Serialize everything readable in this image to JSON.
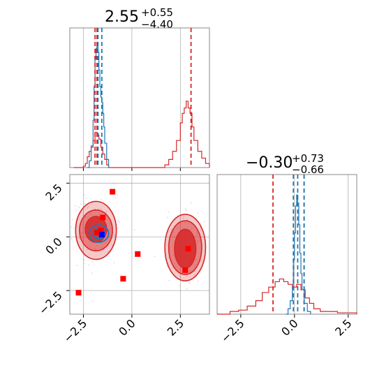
{
  "chart_data": {
    "type": "corner",
    "colors": {
      "prior": "#d62728",
      "posterior": "#1f77b4",
      "marker": "#ff0000",
      "truth": "#0000ff",
      "scatter": "#e6a9d8",
      "grid": "#b0b0b0",
      "frame": "#888888"
    },
    "params": [
      {
        "title_value": "2.55",
        "title_plus": "+0.55",
        "title_minus": "−4.40",
        "range": [
          -3.2,
          4.0
        ]
      },
      {
        "title_value": "−0.30",
        "title_plus": "+0.73",
        "title_minus": "−0.66",
        "range": [
          -3.6,
          2.9
        ]
      }
    ],
    "axis_ticks": [
      {
        "value": -2.5,
        "label": "−2.5"
      },
      {
        "value": 0.0,
        "label": "0.0"
      },
      {
        "value": 2.5,
        "label": "2.5"
      }
    ],
    "hist1_d": {
      "quantile_lines_red": [
        -1.9,
        -1.8,
        3.05
      ],
      "quantile_lines_blue": [
        -1.75,
        -1.55
      ],
      "red_hist": [
        {
          "x": -3.0,
          "y": 0.0
        },
        {
          "x": -2.5,
          "y": 0.01
        },
        {
          "x": -2.4,
          "y": 0.03
        },
        {
          "x": -2.3,
          "y": 0.08
        },
        {
          "x": -2.2,
          "y": 0.12
        },
        {
          "x": -2.1,
          "y": 0.16
        },
        {
          "x": -2.0,
          "y": 0.2
        },
        {
          "x": -1.9,
          "y": 0.26
        },
        {
          "x": -1.8,
          "y": 0.24
        },
        {
          "x": -1.7,
          "y": 0.21
        },
        {
          "x": -1.6,
          "y": 0.15
        },
        {
          "x": -1.5,
          "y": 0.1
        },
        {
          "x": -1.4,
          "y": 0.06
        },
        {
          "x": -1.3,
          "y": 0.02
        },
        {
          "x": -1.2,
          "y": 0.0
        },
        {
          "x": 1.5,
          "y": 0.0
        },
        {
          "x": 1.7,
          "y": 0.02
        },
        {
          "x": 1.9,
          "y": 0.06
        },
        {
          "x": 2.1,
          "y": 0.12
        },
        {
          "x": 2.3,
          "y": 0.2
        },
        {
          "x": 2.5,
          "y": 0.33
        },
        {
          "x": 2.6,
          "y": 0.4
        },
        {
          "x": 2.7,
          "y": 0.44
        },
        {
          "x": 2.8,
          "y": 0.49
        },
        {
          "x": 2.9,
          "y": 0.44
        },
        {
          "x": 3.0,
          "y": 0.4
        },
        {
          "x": 3.1,
          "y": 0.3
        },
        {
          "x": 3.2,
          "y": 0.2
        },
        {
          "x": 3.4,
          "y": 0.12
        },
        {
          "x": 3.6,
          "y": 0.07
        },
        {
          "x": 3.8,
          "y": 0.03
        },
        {
          "x": 4.0,
          "y": 0.0
        }
      ],
      "blue_hist": [
        {
          "x": -2.3,
          "y": 0.0
        },
        {
          "x": -2.2,
          "y": 0.05
        },
        {
          "x": -2.1,
          "y": 0.15
        },
        {
          "x": -2.0,
          "y": 0.35
        },
        {
          "x": -1.95,
          "y": 0.6
        },
        {
          "x": -1.9,
          "y": 0.8
        },
        {
          "x": -1.85,
          "y": 0.88
        },
        {
          "x": -1.8,
          "y": 0.9
        },
        {
          "x": -1.75,
          "y": 0.85
        },
        {
          "x": -1.7,
          "y": 0.72
        },
        {
          "x": -1.65,
          "y": 0.6
        },
        {
          "x": -1.6,
          "y": 0.52
        },
        {
          "x": -1.55,
          "y": 0.48
        },
        {
          "x": -1.5,
          "y": 0.4
        },
        {
          "x": -1.45,
          "y": 0.3
        },
        {
          "x": -1.4,
          "y": 0.18
        },
        {
          "x": -1.3,
          "y": 0.06
        },
        {
          "x": -1.2,
          "y": 0.0
        }
      ],
      "ymax": 1.0
    },
    "hist2_d": {
      "quantile_lines_red": [
        -1.0,
        0.45
      ],
      "quantile_lines_blue": [
        -0.05,
        0.15,
        0.45
      ],
      "red_hist": [
        {
          "x": -3.6,
          "y": 0.0
        },
        {
          "x": -3.0,
          "y": 0.02
        },
        {
          "x": -2.6,
          "y": 0.03
        },
        {
          "x": -2.2,
          "y": 0.06
        },
        {
          "x": -1.8,
          "y": 0.1
        },
        {
          "x": -1.5,
          "y": 0.16
        },
        {
          "x": -1.2,
          "y": 0.2
        },
        {
          "x": -0.9,
          "y": 0.24
        },
        {
          "x": -0.7,
          "y": 0.26
        },
        {
          "x": -0.5,
          "y": 0.24
        },
        {
          "x": -0.3,
          "y": 0.22
        },
        {
          "x": -0.1,
          "y": 0.2
        },
        {
          "x": 0.1,
          "y": 0.22
        },
        {
          "x": 0.3,
          "y": 0.18
        },
        {
          "x": 0.5,
          "y": 0.12
        },
        {
          "x": 0.7,
          "y": 0.08
        },
        {
          "x": 0.9,
          "y": 0.04
        },
        {
          "x": 1.2,
          "y": 0.02
        },
        {
          "x": 1.6,
          "y": 0.02
        },
        {
          "x": 2.0,
          "y": 0.01
        },
        {
          "x": 2.4,
          "y": 0.01
        },
        {
          "x": 2.9,
          "y": 0.0
        }
      ],
      "blue_hist": [
        {
          "x": -0.4,
          "y": 0.0
        },
        {
          "x": -0.3,
          "y": 0.04
        },
        {
          "x": -0.2,
          "y": 0.1
        },
        {
          "x": -0.1,
          "y": 0.2
        },
        {
          "x": -0.05,
          "y": 0.4
        },
        {
          "x": 0.0,
          "y": 0.6
        },
        {
          "x": 0.05,
          "y": 0.8
        },
        {
          "x": 0.1,
          "y": 0.88
        },
        {
          "x": 0.15,
          "y": 0.82
        },
        {
          "x": 0.2,
          "y": 0.66
        },
        {
          "x": 0.25,
          "y": 0.45
        },
        {
          "x": 0.3,
          "y": 0.3
        },
        {
          "x": 0.35,
          "y": 0.18
        },
        {
          "x": 0.45,
          "y": 0.08
        },
        {
          "x": 0.6,
          "y": 0.02
        },
        {
          "x": 0.75,
          "y": 0.0
        }
      ],
      "ymax": 1.0
    },
    "scatter_2d": {
      "red_markers": [
        {
          "x": -1.0,
          "y": 2.1
        },
        {
          "x": -1.5,
          "y": 0.9
        },
        {
          "x": -1.6,
          "y": 0.3
        },
        {
          "x": -1.8,
          "y": 0.2
        },
        {
          "x": 0.3,
          "y": -0.8
        },
        {
          "x": -0.45,
          "y": -1.95
        },
        {
          "x": -2.75,
          "y": -2.6
        },
        {
          "x": 2.9,
          "y": -0.55
        },
        {
          "x": 2.75,
          "y": -1.55
        }
      ],
      "blue_markers": [
        {
          "x": -1.55,
          "y": 0.1
        }
      ],
      "red_contours": [
        {
          "cx": -1.85,
          "cy": 0.35,
          "rx": 0.55,
          "ry": 0.6,
          "level": 1
        },
        {
          "cx": -1.85,
          "cy": 0.3,
          "rx": 0.85,
          "ry": 0.95,
          "level": 2
        },
        {
          "cx": -1.85,
          "cy": 0.3,
          "rx": 1.05,
          "ry": 1.35,
          "level": 3
        },
        {
          "cx": 2.75,
          "cy": -0.55,
          "rx": 0.55,
          "ry": 0.9,
          "level": 1
        },
        {
          "cx": 2.75,
          "cy": -0.5,
          "rx": 0.85,
          "ry": 1.25,
          "level": 2
        },
        {
          "cx": 2.75,
          "cy": -0.5,
          "rx": 1.05,
          "ry": 1.55,
          "level": 3
        }
      ],
      "blue_contours": [
        {
          "cx": -1.7,
          "cy": 0.15,
          "rx": 0.3,
          "ry": 0.25
        },
        {
          "cx": -1.7,
          "cy": 0.15,
          "rx": 0.5,
          "ry": 0.4
        }
      ]
    }
  }
}
